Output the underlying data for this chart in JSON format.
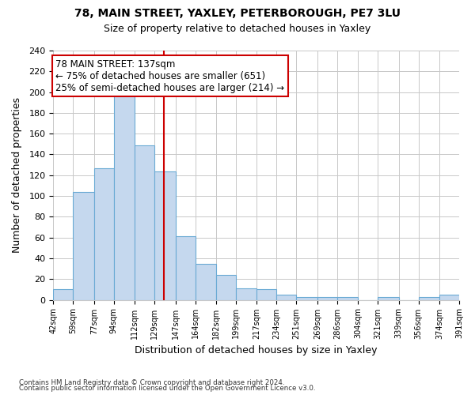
{
  "title": "78, MAIN STREET, YAXLEY, PETERBOROUGH, PE7 3LU",
  "subtitle": "Size of property relative to detached houses in Yaxley",
  "xlabel": "Distribution of detached houses by size in Yaxley",
  "ylabel": "Number of detached properties",
  "bins": [
    42,
    59,
    77,
    94,
    112,
    129,
    147,
    164,
    182,
    199,
    217,
    234,
    251,
    269,
    286,
    304,
    321,
    339,
    356,
    374,
    391
  ],
  "counts": [
    10,
    104,
    127,
    199,
    149,
    124,
    61,
    35,
    24,
    11,
    10,
    5,
    3,
    3,
    3,
    0,
    3,
    0,
    3,
    5
  ],
  "bar_color": "#c5d8ee",
  "bar_edge_color": "#6aaad4",
  "vline_x": 137,
  "vline_color": "#cc0000",
  "annotation_title": "78 MAIN STREET: 137sqm",
  "annotation_line1": "← 75% of detached houses are smaller (651)",
  "annotation_line2": "25% of semi-detached houses are larger (214) →",
  "annotation_box_color": "#cc0000",
  "annotation_fontsize": 8.5,
  "ylim": [
    0,
    240
  ],
  "yticks": [
    0,
    20,
    40,
    60,
    80,
    100,
    120,
    140,
    160,
    180,
    200,
    220,
    240
  ],
  "tick_labels": [
    "42sqm",
    "59sqm",
    "77sqm",
    "94sqm",
    "112sqm",
    "129sqm",
    "147sqm",
    "164sqm",
    "182sqm",
    "199sqm",
    "217sqm",
    "234sqm",
    "251sqm",
    "269sqm",
    "286sqm",
    "304sqm",
    "321sqm",
    "339sqm",
    "356sqm",
    "374sqm",
    "391sqm"
  ],
  "footnote1": "Contains HM Land Registry data © Crown copyright and database right 2024.",
  "footnote2": "Contains public sector information licensed under the Open Government Licence v3.0.",
  "background_color": "#ffffff",
  "grid_color": "#c8c8c8"
}
